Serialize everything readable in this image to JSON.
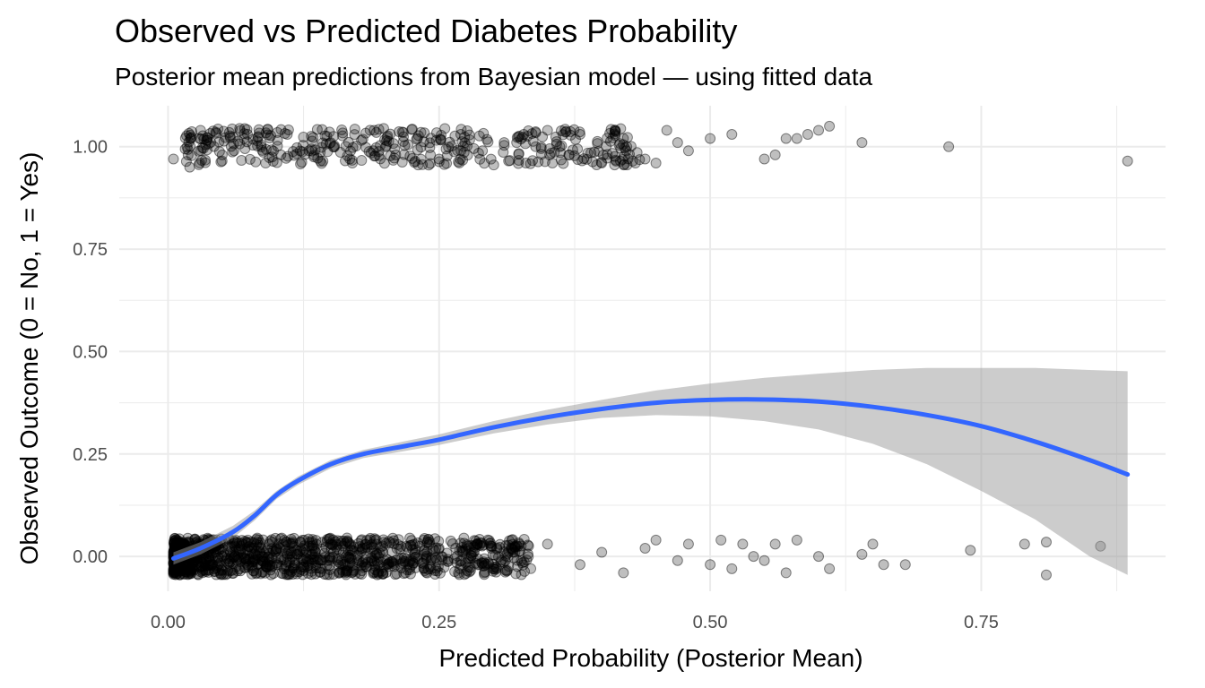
{
  "chart_data": {
    "type": "scatter",
    "title": "Observed vs Predicted Diabetes Probability",
    "subtitle": "Posterior mean predictions from Bayesian model — using fitted data",
    "xlabel": "Predicted Probability (Posterior Mean)",
    "ylabel": "Observed Outcome (0 = No, 1 = Yes)",
    "xlim": [
      -0.045,
      0.92
    ],
    "ylim": [
      -0.085,
      1.1
    ],
    "x_ticks": [
      "0.00",
      "0.25",
      "0.50",
      "0.75"
    ],
    "x_tick_values": [
      0,
      0.25,
      0.5,
      0.75
    ],
    "y_ticks": [
      "0.00",
      "0.25",
      "0.50",
      "0.75",
      "1.00"
    ],
    "y_tick_values": [
      0,
      0.25,
      0.5,
      0.75,
      1.0
    ],
    "grid": true,
    "background": "#ffffff",
    "grid_color": "#ebebeb",
    "point_color": "#000000",
    "point_alpha": 0.25,
    "jitter": 0.05,
    "series": [
      {
        "type": "scatter",
        "points": [
          [
            0.005,
            0.97
          ],
          [
            0.02,
            0.95
          ],
          [
            0.03,
            1.04
          ],
          [
            0.05,
            0.98
          ],
          [
            0.07,
            1.02
          ],
          [
            0.09,
            0.96
          ],
          [
            0.11,
            1.03
          ],
          [
            0.13,
            0.99
          ],
          [
            0.15,
            1.01
          ],
          [
            0.17,
            0.96
          ],
          [
            0.19,
            1.04
          ],
          [
            0.21,
            0.98
          ],
          [
            0.23,
            1.02
          ],
          [
            0.25,
            0.97
          ],
          [
            0.27,
            1.03
          ],
          [
            0.29,
            0.99
          ],
          [
            0.31,
            1.01
          ],
          [
            0.33,
            0.96
          ],
          [
            0.35,
            1.04
          ],
          [
            0.37,
            0.98
          ],
          [
            0.38,
            1.03
          ],
          [
            0.4,
            0.96
          ],
          [
            0.42,
            1.02
          ],
          [
            0.44,
            0.97
          ],
          [
            0.45,
            0.96
          ],
          [
            0.46,
            1.04
          ],
          [
            0.47,
            1.01
          ],
          [
            0.48,
            0.99
          ],
          [
            0.5,
            1.02
          ],
          [
            0.52,
            1.03
          ],
          [
            0.55,
            0.97
          ],
          [
            0.56,
            0.98
          ],
          [
            0.57,
            1.02
          ],
          [
            0.58,
            1.02
          ],
          [
            0.59,
            1.03
          ],
          [
            0.61,
            1.05
          ],
          [
            0.6,
            1.04
          ],
          [
            0.64,
            1.01
          ],
          [
            0.72,
            1.0
          ],
          [
            0.885,
            0.965
          ],
          [
            0.01,
            0.0
          ],
          [
            0.05,
            0.02
          ],
          [
            0.1,
            -0.02
          ],
          [
            0.15,
            0.03
          ],
          [
            0.2,
            -0.01
          ],
          [
            0.25,
            0.02
          ],
          [
            0.3,
            -0.03
          ],
          [
            0.32,
            0.01
          ],
          [
            0.35,
            0.03
          ],
          [
            0.38,
            -0.02
          ],
          [
            0.4,
            0.01
          ],
          [
            0.42,
            -0.04
          ],
          [
            0.44,
            0.02
          ],
          [
            0.45,
            0.04
          ],
          [
            0.47,
            -0.01
          ],
          [
            0.48,
            0.03
          ],
          [
            0.5,
            -0.02
          ],
          [
            0.51,
            0.04
          ],
          [
            0.52,
            -0.03
          ],
          [
            0.53,
            0.03
          ],
          [
            0.54,
            0.0
          ],
          [
            0.55,
            -0.01
          ],
          [
            0.56,
            0.03
          ],
          [
            0.57,
            -0.04
          ],
          [
            0.58,
            0.04
          ],
          [
            0.6,
            0.0
          ],
          [
            0.61,
            -0.03
          ],
          [
            0.64,
            0.005
          ],
          [
            0.65,
            0.03
          ],
          [
            0.66,
            -0.02
          ],
          [
            0.68,
            -0.02
          ],
          [
            0.74,
            0.015
          ],
          [
            0.79,
            0.03
          ],
          [
            0.81,
            0.035
          ],
          [
            0.81,
            -0.045
          ],
          [
            0.86,
            0.025
          ]
        ]
      },
      {
        "type": "line",
        "name": "",
        "color": "#3366ff",
        "x": [
          0.005,
          0.03,
          0.06,
          0.08,
          0.1,
          0.12,
          0.15,
          0.18,
          0.22,
          0.25,
          0.3,
          0.35,
          0.4,
          0.45,
          0.5,
          0.55,
          0.6,
          0.65,
          0.7,
          0.75,
          0.8,
          0.85,
          0.885
        ],
        "y": [
          -0.005,
          0.02,
          0.06,
          0.1,
          0.15,
          0.185,
          0.225,
          0.25,
          0.27,
          0.285,
          0.315,
          0.34,
          0.36,
          0.375,
          0.382,
          0.383,
          0.378,
          0.365,
          0.345,
          0.318,
          0.28,
          0.235,
          0.2
        ]
      },
      {
        "type": "ribbon",
        "color": "#999999",
        "x": [
          0.005,
          0.03,
          0.06,
          0.08,
          0.1,
          0.12,
          0.15,
          0.18,
          0.22,
          0.25,
          0.3,
          0.35,
          0.4,
          0.45,
          0.5,
          0.55,
          0.6,
          0.65,
          0.7,
          0.75,
          0.8,
          0.85,
          0.885
        ],
        "ymin": [
          -0.02,
          0.005,
          0.045,
          0.088,
          0.14,
          0.175,
          0.215,
          0.24,
          0.258,
          0.272,
          0.3,
          0.322,
          0.338,
          0.345,
          0.342,
          0.33,
          0.31,
          0.275,
          0.225,
          0.16,
          0.09,
          0.0,
          -0.045
        ],
        "ymax": [
          0.01,
          0.035,
          0.075,
          0.112,
          0.16,
          0.195,
          0.235,
          0.26,
          0.282,
          0.298,
          0.33,
          0.358,
          0.382,
          0.405,
          0.422,
          0.436,
          0.446,
          0.455,
          0.46,
          0.46,
          0.46,
          0.455,
          0.452
        ]
      }
    ]
  }
}
